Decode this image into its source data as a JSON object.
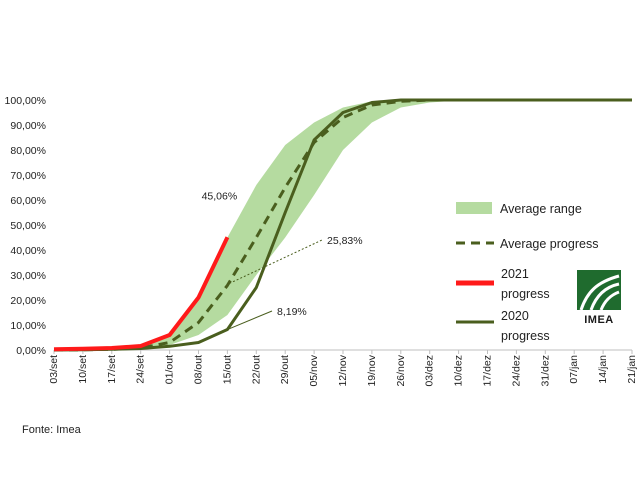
{
  "chart_data": {
    "type": "line",
    "x": [
      "03/set",
      "10/set",
      "17/set",
      "24/set",
      "01/out",
      "08/out",
      "15/out",
      "22/out",
      "29/out",
      "05/nov",
      "12/nov",
      "19/nov",
      "26/nov",
      "03/dez",
      "10/dez",
      "17/dez",
      "24/dez",
      "31/dez",
      "07/jan",
      "14/jan",
      "21/jan"
    ],
    "ylim": [
      0,
      100
    ],
    "yticks": [
      "0,00%",
      "10,00%",
      "20,00%",
      "30,00%",
      "40,00%",
      "50,00%",
      "60,00%",
      "70,00%",
      "80,00%",
      "90,00%",
      "100,00%"
    ],
    "range_band": {
      "name": "Average range",
      "color": "#b5dba0",
      "low": [
        0,
        0,
        0.2,
        0.5,
        2,
        6,
        14,
        30,
        45,
        62,
        80,
        91,
        97,
        99,
        99.8,
        100,
        100,
        100,
        100,
        100,
        100
      ],
      "high": [
        0,
        0.3,
        0.5,
        1.5,
        6,
        22,
        45,
        66,
        82,
        91,
        97,
        99.5,
        100,
        100,
        100,
        100,
        100,
        100,
        100,
        100,
        100
      ]
    },
    "series": [
      {
        "name": "Average progress",
        "color": "#4a5e1e",
        "dashed": true,
        "values": [
          0,
          0.1,
          0.3,
          0.8,
          3,
          11,
          25.83,
          45,
          65,
          83,
          93,
          98,
          99.5,
          100,
          100,
          100,
          100,
          100,
          100,
          100,
          100
        ]
      },
      {
        "name": "2021 progress",
        "color": "#ff1a1a",
        "dashed": false,
        "values": [
          0.3,
          0.5,
          0.8,
          1.6,
          6,
          21,
          45.06,
          null,
          null,
          null,
          null,
          null,
          null,
          null,
          null,
          null,
          null,
          null,
          null,
          null,
          null
        ]
      },
      {
        "name": "2020 progress",
        "color": "#4a5e1e",
        "dashed": false,
        "values": [
          0,
          0.1,
          0.3,
          0.6,
          1.5,
          3,
          8.19,
          25,
          55,
          84,
          95,
          99,
          100,
          100,
          100,
          100,
          100,
          100,
          100,
          100,
          100
        ]
      }
    ],
    "legend": {
      "placement": "right",
      "entries": [
        {
          "label": "Average range"
        },
        {
          "label": "Average progress"
        },
        {
          "label_lines": [
            "2021",
            "progress"
          ]
        },
        {
          "label_lines": [
            "2020",
            "progress"
          ]
        }
      ]
    },
    "annotations": [
      {
        "text": "45,06%",
        "series": "2021 progress",
        "x_index": 6,
        "value": 45.06
      },
      {
        "text": "25,83%",
        "series": "Average progress",
        "x_index": 6,
        "value": 25.83
      },
      {
        "text": "8,19%",
        "series": "2020 progress",
        "x_index": 6,
        "value": 8.19
      }
    ],
    "grid": false
  },
  "logo": {
    "text": "IMEA",
    "color": "#1f6b2e"
  },
  "source": "Fonte: Imea"
}
